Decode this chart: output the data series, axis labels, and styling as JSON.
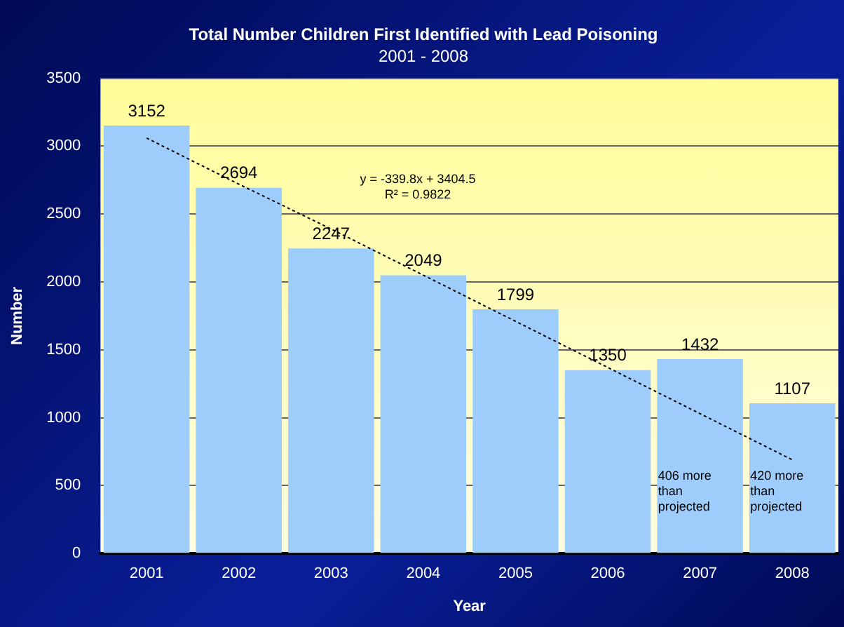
{
  "chart_data": {
    "type": "bar",
    "title": "Total Number Children First Identified with Lead Poisoning",
    "subtitle": "2001 - 2008",
    "xlabel": "Year",
    "ylabel": "Number",
    "categories": [
      "2001",
      "2002",
      "2003",
      "2004",
      "2005",
      "2006",
      "2007",
      "2008"
    ],
    "series": [
      {
        "color": "#9fcdfb",
        "values": [
          3152,
          2694,
          2247,
          2049,
          1799,
          1350,
          1432,
          1107
        ],
        "value_labels": [
          "3152",
          "2694",
          "2247",
          "2049",
          "1799",
          "1350",
          "1432",
          "1107"
        ]
      },
      {
        "type": "line",
        "color": "#000000",
        "line_style": "dotted",
        "values": [
          3060,
          2720,
          2390,
          2050,
          1710,
          1370,
          1030,
          690
        ]
      }
    ],
    "ylim": [
      0,
      3500
    ],
    "yticks": [
      0,
      500,
      1000,
      1500,
      2000,
      2500,
      3000,
      3500
    ],
    "grid": "y",
    "legend": false,
    "annotations": [
      "y = -339.8x + 3404.5\nR² = 0.9822",
      "406 more\nthan\nprojected",
      "420 more\nthan\nprojected"
    ]
  }
}
